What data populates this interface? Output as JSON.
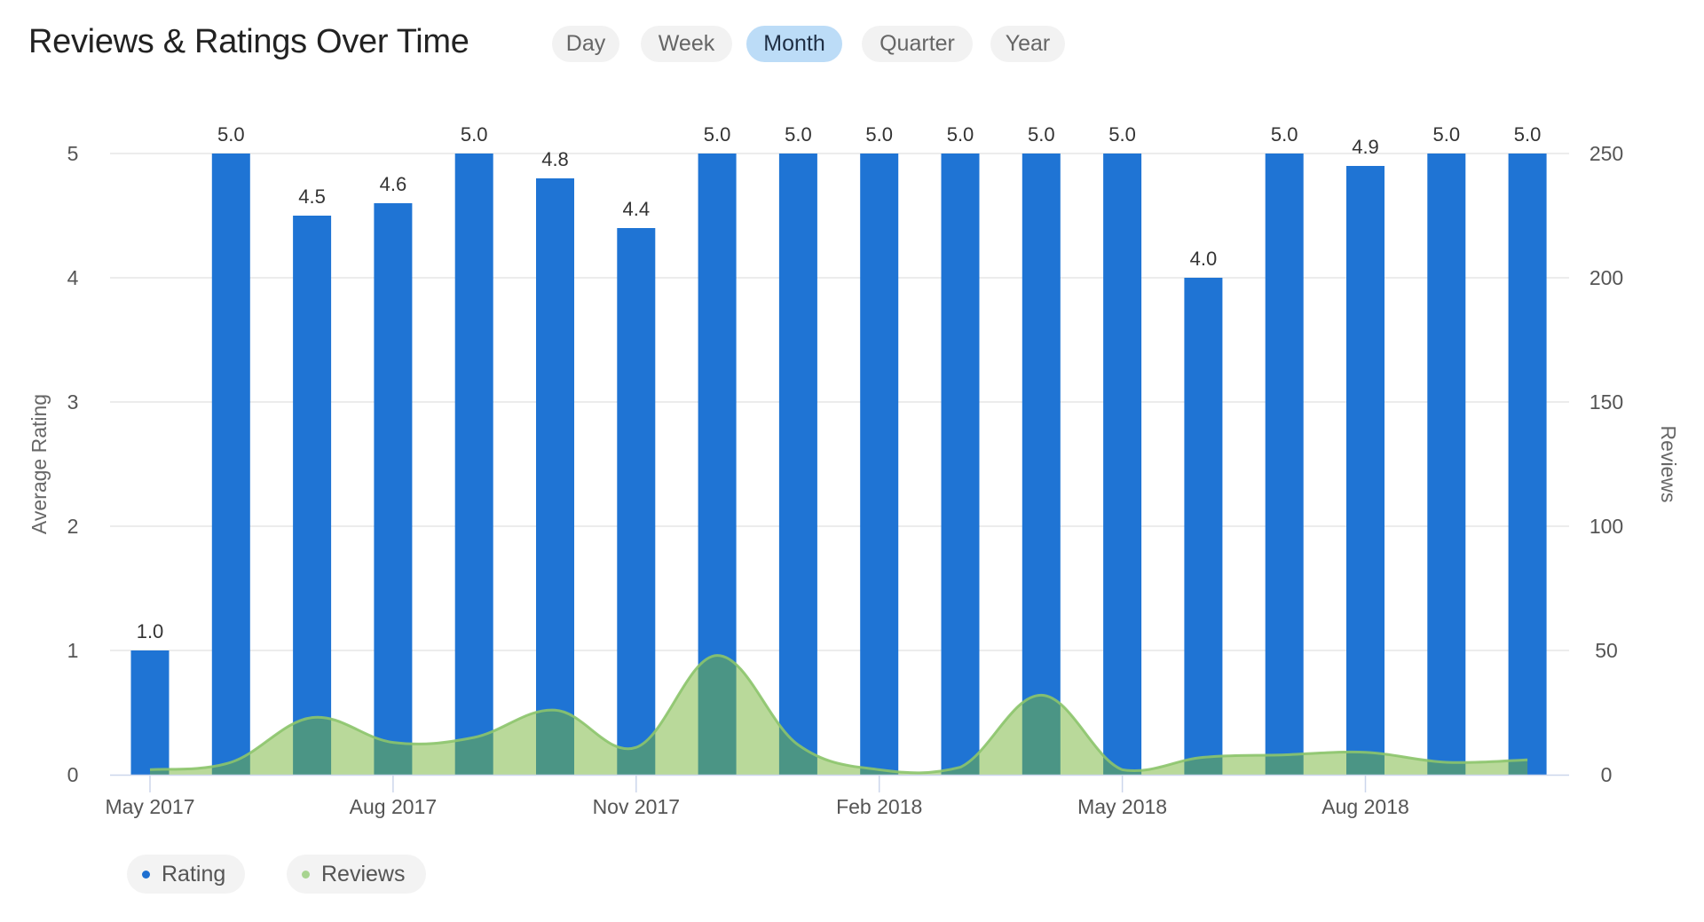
{
  "header": {
    "title": "Reviews & Ratings Over Time"
  },
  "range_selector": {
    "options": [
      {
        "label": "Day",
        "active": false
      },
      {
        "label": "Week",
        "active": false
      },
      {
        "label": "Month",
        "active": true
      },
      {
        "label": "Quarter",
        "active": false
      },
      {
        "label": "Year",
        "active": false
      }
    ]
  },
  "legend": {
    "items": [
      {
        "label": "Rating",
        "color": "#1e6fd0"
      },
      {
        "label": "Reviews",
        "color": "#a8d490"
      }
    ]
  },
  "colors": {
    "bar": "#1f74d4",
    "area_fill": "#75b539",
    "area_line": "#8cc46b",
    "grid": "#e6e6e6",
    "axis": "#ccd6eb"
  },
  "chart_data": {
    "type": "bar",
    "title": "Reviews & Ratings Over Time",
    "categories": [
      "May 2017",
      "Jun 2017",
      "Jul 2017",
      "Aug 2017",
      "Sep 2017",
      "Oct 2017",
      "Nov 2017",
      "Dec 2017",
      "Jan 2018",
      "Feb 2018",
      "Mar 2018",
      "Apr 2018",
      "May 2018",
      "Jun 2018",
      "Jul 2018",
      "Aug 2018",
      "Sep 2018",
      "Oct 2018"
    ],
    "x_tick_labels": [
      "May 2017",
      "Aug 2017",
      "Nov 2017",
      "Feb 2018",
      "May 2018",
      "Aug 2018"
    ],
    "x_tick_indices": [
      0,
      3,
      6,
      9,
      12,
      15
    ],
    "series": [
      {
        "name": "Rating",
        "type": "bar",
        "axis": "left",
        "values": [
          1.0,
          5.0,
          4.5,
          4.6,
          5.0,
          4.8,
          4.4,
          5.0,
          5.0,
          5.0,
          5.0,
          5.0,
          5.0,
          4.0,
          5.0,
          4.9,
          5.0,
          5.0
        ],
        "data_labels": [
          "1.0",
          "5.0",
          "4.5",
          "4.6",
          "5.0",
          "4.8",
          "4.4",
          "5.0",
          "5.0",
          "5.0",
          "5.0",
          "5.0",
          "5.0",
          "4.0",
          "5.0",
          "4.9",
          "5.0",
          "5.0"
        ]
      },
      {
        "name": "Reviews",
        "type": "area",
        "axis": "right",
        "values": [
          2,
          5,
          23,
          13,
          15,
          26,
          11,
          48,
          12,
          2,
          3,
          32,
          2,
          7,
          8,
          9,
          5,
          6
        ]
      }
    ],
    "ylabel": "Average Rating",
    "ylim": [
      0,
      5
    ],
    "yticks": [
      0,
      1,
      2,
      3,
      4,
      5
    ],
    "y2label": "Reviews",
    "y2lim": [
      0,
      250
    ],
    "y2ticks": [
      0,
      50,
      100,
      150,
      200,
      250
    ],
    "grid": true,
    "legend_position": "bottom-left"
  }
}
